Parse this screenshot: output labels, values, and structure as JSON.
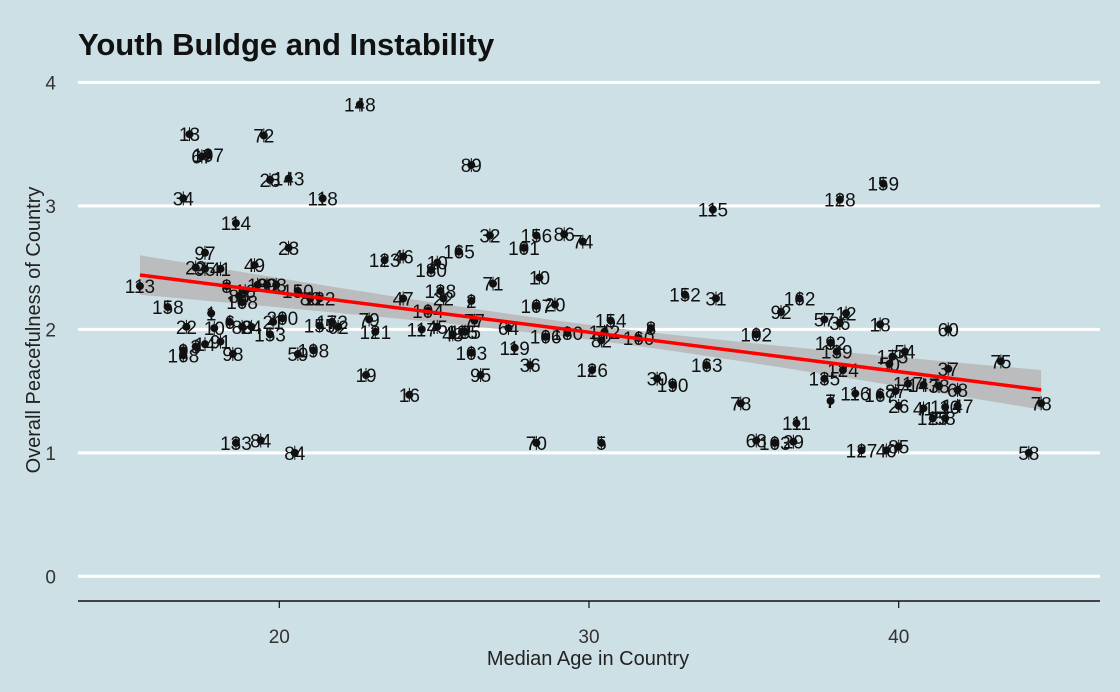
{
  "chart_data": {
    "type": "scatter",
    "title": "Youth Buldge and Instability",
    "xlabel": "Median Age in Country",
    "ylabel": "Overall Peacefulness of Country",
    "xlim": [
      13.5,
      46.5
    ],
    "ylim": [
      -0.2,
      4.1
    ],
    "xticks": [
      20,
      30,
      40
    ],
    "yticks": [
      0,
      1,
      2,
      3,
      4
    ],
    "grid": true,
    "trend": {
      "method": "lm",
      "x": [
        15.5,
        44.6
      ],
      "y": [
        2.44,
        1.51
      ],
      "ci_halfwidth_ends": 0.16,
      "ci_halfwidth_center": 0.06,
      "line_color": "#ff0000",
      "band_color": "#b8b8b8"
    },
    "colors": {
      "background": "#cde0e6",
      "grid": "#ffffff",
      "point": "#111111"
    },
    "points": [
      {
        "label": "113",
        "x": 15.5,
        "y": 2.35
      },
      {
        "label": "158",
        "x": 16.4,
        "y": 2.18
      },
      {
        "label": "34",
        "x": 16.9,
        "y": 3.06
      },
      {
        "label": "22",
        "x": 17.0,
        "y": 2.02
      },
      {
        "label": "9",
        "x": 16.9,
        "y": 1.83
      },
      {
        "label": "168",
        "x": 16.9,
        "y": 1.79
      },
      {
        "label": "13",
        "x": 17.1,
        "y": 3.58
      },
      {
        "label": "29",
        "x": 17.3,
        "y": 2.5
      },
      {
        "label": "3",
        "x": 17.3,
        "y": 1.86
      },
      {
        "label": "107",
        "x": 17.7,
        "y": 3.41
      },
      {
        "label": "67",
        "x": 17.5,
        "y": 3.4
      },
      {
        "label": "97",
        "x": 17.6,
        "y": 2.62
      },
      {
        "label": "95",
        "x": 17.6,
        "y": 2.49
      },
      {
        "label": "14",
        "x": 17.6,
        "y": 1.88
      },
      {
        "label": "1",
        "x": 17.8,
        "y": 2.13
      },
      {
        "label": "10",
        "x": 17.9,
        "y": 2.01
      },
      {
        "label": "91",
        "x": 18.1,
        "y": 1.9
      },
      {
        "label": "41",
        "x": 18.1,
        "y": 2.49
      },
      {
        "label": "8",
        "x": 18.3,
        "y": 2.35
      },
      {
        "label": "6",
        "x": 18.4,
        "y": 2.06
      },
      {
        "label": "98",
        "x": 18.5,
        "y": 1.8
      },
      {
        "label": "114",
        "x": 18.6,
        "y": 2.86
      },
      {
        "label": "88",
        "x": 18.7,
        "y": 2.27
      },
      {
        "label": "108",
        "x": 18.8,
        "y": 2.22
      },
      {
        "label": "16",
        "x": 18.9,
        "y": 2.31
      },
      {
        "label": "133",
        "x": 18.6,
        "y": 1.08
      },
      {
        "label": "84",
        "x": 19.4,
        "y": 1.1
      },
      {
        "label": "83",
        "x": 18.8,
        "y": 2.02
      },
      {
        "label": "49",
        "x": 19.2,
        "y": 2.52
      },
      {
        "label": "19",
        "x": 19.3,
        "y": 2.36
      },
      {
        "label": "72",
        "x": 19.5,
        "y": 3.57
      },
      {
        "label": "24",
        "x": 19.1,
        "y": 2.02
      },
      {
        "label": "30",
        "x": 19.6,
        "y": 2.36
      },
      {
        "label": "153",
        "x": 19.7,
        "y": 1.96
      },
      {
        "label": "93",
        "x": 19.9,
        "y": 2.36
      },
      {
        "label": "21",
        "x": 19.8,
        "y": 2.06
      },
      {
        "label": "200",
        "x": 20.1,
        "y": 2.09
      },
      {
        "label": "28",
        "x": 19.7,
        "y": 3.21
      },
      {
        "label": "143",
        "x": 20.3,
        "y": 3.22
      },
      {
        "label": "23",
        "x": 20.3,
        "y": 2.66
      },
      {
        "label": "150",
        "x": 20.6,
        "y": 2.31
      },
      {
        "label": "84",
        "x": 20.5,
        "y": 1.0
      },
      {
        "label": "59",
        "x": 20.6,
        "y": 1.8
      },
      {
        "label": "198",
        "x": 21.1,
        "y": 1.83
      },
      {
        "label": "118",
        "x": 21.4,
        "y": 3.06
      },
      {
        "label": "86",
        "x": 21.0,
        "y": 2.25
      },
      {
        "label": "122",
        "x": 21.3,
        "y": 2.25
      },
      {
        "label": "155",
        "x": 21.3,
        "y": 2.03
      },
      {
        "label": "62",
        "x": 21.9,
        "y": 2.02
      },
      {
        "label": "172",
        "x": 21.7,
        "y": 2.06
      },
      {
        "label": "79",
        "x": 22.9,
        "y": 2.08
      },
      {
        "label": "121",
        "x": 23.1,
        "y": 1.98
      },
      {
        "label": "148",
        "x": 22.6,
        "y": 3.82
      },
      {
        "label": "19",
        "x": 22.8,
        "y": 1.63
      },
      {
        "label": "123",
        "x": 23.4,
        "y": 2.56
      },
      {
        "label": "46",
        "x": 24.0,
        "y": 2.59
      },
      {
        "label": "47",
        "x": 24.0,
        "y": 2.25
      },
      {
        "label": "16",
        "x": 24.2,
        "y": 1.47
      },
      {
        "label": "117",
        "x": 24.6,
        "y": 2.0
      },
      {
        "label": "104",
        "x": 24.8,
        "y": 2.15
      },
      {
        "label": "45",
        "x": 25.1,
        "y": 2.02
      },
      {
        "label": "138",
        "x": 25.2,
        "y": 2.31
      },
      {
        "label": "22",
        "x": 25.3,
        "y": 2.25
      },
      {
        "label": "10",
        "x": 25.1,
        "y": 2.54
      },
      {
        "label": "180",
        "x": 24.9,
        "y": 2.48
      },
      {
        "label": "48",
        "x": 25.6,
        "y": 1.96
      },
      {
        "label": "105",
        "x": 26.0,
        "y": 1.98
      },
      {
        "label": "125",
        "x": 25.9,
        "y": 1.98
      },
      {
        "label": "165",
        "x": 25.8,
        "y": 2.63
      },
      {
        "label": "89",
        "x": 26.2,
        "y": 3.33
      },
      {
        "label": "2",
        "x": 26.2,
        "y": 2.23
      },
      {
        "label": "77",
        "x": 26.3,
        "y": 2.07
      },
      {
        "label": "103",
        "x": 26.2,
        "y": 1.81
      },
      {
        "label": "95",
        "x": 26.5,
        "y": 1.63
      },
      {
        "label": "32",
        "x": 26.8,
        "y": 2.76
      },
      {
        "label": "71",
        "x": 26.9,
        "y": 2.37
      },
      {
        "label": "64",
        "x": 27.4,
        "y": 2.01
      },
      {
        "label": "119",
        "x": 27.6,
        "y": 1.85
      },
      {
        "label": "101",
        "x": 27.9,
        "y": 2.66
      },
      {
        "label": "36",
        "x": 28.1,
        "y": 1.71
      },
      {
        "label": "107",
        "x": 28.3,
        "y": 2.19
      },
      {
        "label": "10",
        "x": 28.4,
        "y": 2.42
      },
      {
        "label": "156",
        "x": 28.3,
        "y": 2.76
      },
      {
        "label": "70",
        "x": 28.3,
        "y": 1.08
      },
      {
        "label": "20",
        "x": 28.9,
        "y": 2.2
      },
      {
        "label": "86",
        "x": 29.2,
        "y": 2.77
      },
      {
        "label": "106",
        "x": 28.6,
        "y": 1.94
      },
      {
        "label": "180",
        "x": 29.3,
        "y": 1.97
      },
      {
        "label": "74",
        "x": 29.8,
        "y": 2.71
      },
      {
        "label": "5",
        "x": 30.4,
        "y": 1.08
      },
      {
        "label": "126",
        "x": 30.1,
        "y": 1.67
      },
      {
        "label": "82",
        "x": 30.4,
        "y": 1.91
      },
      {
        "label": "142",
        "x": 30.5,
        "y": 1.98
      },
      {
        "label": "154",
        "x": 30.7,
        "y": 2.07
      },
      {
        "label": "160",
        "x": 31.6,
        "y": 1.93
      },
      {
        "label": "8",
        "x": 32.0,
        "y": 2.01
      },
      {
        "label": "30",
        "x": 32.2,
        "y": 1.6
      },
      {
        "label": "190",
        "x": 32.7,
        "y": 1.55
      },
      {
        "label": "152",
        "x": 33.1,
        "y": 2.28
      },
      {
        "label": "31",
        "x": 34.1,
        "y": 2.25
      },
      {
        "label": "163",
        "x": 33.8,
        "y": 1.71
      },
      {
        "label": "115",
        "x": 34.0,
        "y": 2.97
      },
      {
        "label": "78",
        "x": 34.9,
        "y": 1.4
      },
      {
        "label": "68",
        "x": 35.4,
        "y": 1.1
      },
      {
        "label": "103",
        "x": 36.0,
        "y": 1.08
      },
      {
        "label": "29",
        "x": 36.6,
        "y": 1.09
      },
      {
        "label": "111",
        "x": 36.7,
        "y": 1.24
      },
      {
        "label": "102",
        "x": 35.4,
        "y": 1.96
      },
      {
        "label": "92",
        "x": 36.2,
        "y": 2.14
      },
      {
        "label": "162",
        "x": 36.8,
        "y": 2.25
      },
      {
        "label": "57",
        "x": 37.6,
        "y": 2.08
      },
      {
        "label": "7",
        "x": 37.8,
        "y": 1.42
      },
      {
        "label": "135",
        "x": 37.6,
        "y": 1.6
      },
      {
        "label": "192",
        "x": 37.8,
        "y": 1.89
      },
      {
        "label": "139",
        "x": 38.0,
        "y": 1.82
      },
      {
        "label": "124",
        "x": 38.2,
        "y": 1.67
      },
      {
        "label": "12",
        "x": 38.3,
        "y": 2.13
      },
      {
        "label": "36",
        "x": 38.1,
        "y": 2.05
      },
      {
        "label": "128",
        "x": 38.1,
        "y": 3.05
      },
      {
        "label": "127",
        "x": 38.8,
        "y": 1.02
      },
      {
        "label": "116",
        "x": 38.6,
        "y": 1.48
      },
      {
        "label": "18",
        "x": 39.4,
        "y": 2.04
      },
      {
        "label": "159",
        "x": 39.5,
        "y": 3.18
      },
      {
        "label": "167",
        "x": 39.4,
        "y": 1.47
      },
      {
        "label": "40",
        "x": 39.6,
        "y": 1.02
      },
      {
        "label": "85",
        "x": 40.0,
        "y": 1.05
      },
      {
        "label": "26",
        "x": 40.0,
        "y": 1.38
      },
      {
        "label": "87",
        "x": 39.9,
        "y": 1.5
      },
      {
        "label": "50",
        "x": 39.7,
        "y": 1.72
      },
      {
        "label": "175",
        "x": 39.8,
        "y": 1.78
      },
      {
        "label": "54",
        "x": 40.2,
        "y": 1.82
      },
      {
        "label": "117",
        "x": 40.3,
        "y": 1.56
      },
      {
        "label": "147",
        "x": 40.8,
        "y": 1.55
      },
      {
        "label": "41",
        "x": 40.8,
        "y": 1.36
      },
      {
        "label": "125",
        "x": 41.1,
        "y": 1.28
      },
      {
        "label": "38",
        "x": 41.3,
        "y": 1.54
      },
      {
        "label": "58",
        "x": 41.5,
        "y": 1.28
      },
      {
        "label": "110",
        "x": 41.5,
        "y": 1.37
      },
      {
        "label": "147",
        "x": 41.9,
        "y": 1.38
      },
      {
        "label": "68",
        "x": 41.9,
        "y": 1.51
      },
      {
        "label": "37",
        "x": 41.6,
        "y": 1.68
      },
      {
        "label": "60",
        "x": 41.6,
        "y": 2.0
      },
      {
        "label": "75",
        "x": 43.3,
        "y": 1.74
      },
      {
        "label": "58",
        "x": 44.2,
        "y": 1.0
      },
      {
        "label": "78",
        "x": 44.6,
        "y": 1.4
      }
    ]
  }
}
